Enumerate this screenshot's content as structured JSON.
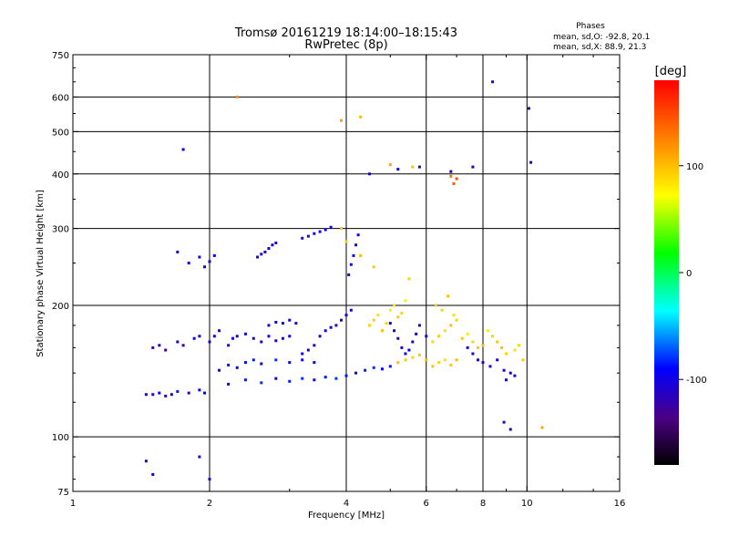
{
  "chart_data": {
    "type": "scatter",
    "title": "Tromsø 20161219 18:14:00–18:15:43",
    "subtitle": "RwPretec (8p)",
    "xlabel": "Frequency [MHz]",
    "ylabel": "Stationary phase Virtual Height [km]",
    "x_scale": "log",
    "y_scale": "log",
    "xlim": [
      1,
      16
    ],
    "ylim": [
      75,
      750
    ],
    "x_ticks": [
      1,
      2,
      4,
      6,
      8,
      10,
      16
    ],
    "y_ticks": [
      75,
      100,
      200,
      300,
      400,
      500,
      600,
      750
    ],
    "x_grid": [
      2,
      4,
      6,
      8,
      10
    ],
    "y_grid": [
      100,
      200,
      300,
      400,
      500,
      600
    ],
    "grid": true,
    "stats": {
      "title": "Phases",
      "line_o": "mean, sd,O: -92.8, 20.1",
      "line_x": "mean, sd,X: 88.9, 21.3"
    },
    "colorbar": {
      "label": "[deg]",
      "range": [
        -180,
        180
      ],
      "ticks": [
        100,
        0,
        -100
      ],
      "colormap": "rainbow"
    },
    "series": [
      {
        "mode": "O",
        "mean_phase": -92.8,
        "sd_phase": 20.1,
        "points": [
          [
            1.45,
            125,
            -100
          ],
          [
            1.5,
            125,
            -110
          ],
          [
            1.55,
            126,
            -95
          ],
          [
            1.6,
            124,
            -120
          ],
          [
            1.65,
            125,
            -100
          ],
          [
            1.7,
            127,
            -85
          ],
          [
            1.8,
            126,
            -110
          ],
          [
            1.9,
            128,
            -100
          ],
          [
            1.95,
            126,
            -90
          ],
          [
            1.5,
            160,
            -130
          ],
          [
            1.55,
            162,
            -120
          ],
          [
            1.6,
            158,
            -140
          ],
          [
            1.7,
            165,
            -110
          ],
          [
            1.75,
            162,
            -125
          ],
          [
            1.85,
            168,
            -100
          ],
          [
            1.9,
            170,
            -95
          ],
          [
            2.0,
            165,
            -110
          ],
          [
            2.05,
            170,
            -105
          ],
          [
            2.1,
            175,
            -100
          ],
          [
            2.2,
            162,
            -120
          ],
          [
            2.25,
            168,
            -100
          ],
          [
            2.3,
            170,
            -110
          ],
          [
            2.4,
            172,
            -95
          ],
          [
            2.5,
            168,
            -100
          ],
          [
            2.6,
            165,
            -105
          ],
          [
            2.7,
            170,
            -100
          ],
          [
            2.8,
            166,
            -115
          ],
          [
            2.9,
            168,
            -100
          ],
          [
            3.0,
            170,
            -95
          ],
          [
            2.1,
            142,
            -95
          ],
          [
            2.2,
            146,
            -85
          ],
          [
            2.3,
            144,
            -100
          ],
          [
            2.4,
            148,
            -90
          ],
          [
            2.5,
            150,
            -85
          ],
          [
            2.6,
            147,
            -95
          ],
          [
            2.8,
            150,
            -80
          ],
          [
            3.0,
            148,
            -95
          ],
          [
            3.2,
            150,
            -100
          ],
          [
            3.4,
            148,
            -90
          ],
          [
            2.2,
            132,
            -90
          ],
          [
            2.4,
            135,
            -85
          ],
          [
            2.6,
            133,
            -80
          ],
          [
            2.8,
            136,
            -90
          ],
          [
            3.0,
            134,
            -85
          ],
          [
            3.2,
            136,
            -80
          ],
          [
            3.4,
            135,
            -90
          ],
          [
            3.6,
            137,
            -85
          ],
          [
            3.8,
            136,
            -80
          ],
          [
            4.0,
            138,
            -85
          ],
          [
            4.2,
            140,
            -90
          ],
          [
            4.4,
            142,
            -85
          ],
          [
            4.6,
            144,
            -80
          ],
          [
            4.8,
            143,
            -90
          ],
          [
            5.0,
            145,
            -85
          ],
          [
            3.2,
            155,
            -100
          ],
          [
            3.3,
            158,
            -110
          ],
          [
            3.4,
            162,
            -120
          ],
          [
            3.5,
            170,
            -110
          ],
          [
            3.6,
            175,
            -105
          ],
          [
            3.7,
            178,
            -100
          ],
          [
            3.8,
            180,
            -115
          ],
          [
            3.9,
            185,
            -120
          ],
          [
            4.0,
            190,
            -110
          ],
          [
            4.1,
            195,
            -100
          ],
          [
            2.7,
            180,
            -100
          ],
          [
            2.8,
            183,
            -95
          ],
          [
            2.9,
            182,
            -105
          ],
          [
            3.0,
            185,
            -100
          ],
          [
            3.1,
            182,
            -110
          ],
          [
            2.55,
            258,
            -100
          ],
          [
            2.6,
            262,
            -105
          ],
          [
            2.65,
            265,
            -110
          ],
          [
            2.7,
            270,
            -100
          ],
          [
            2.75,
            275,
            -95
          ],
          [
            2.8,
            278,
            -110
          ],
          [
            3.2,
            285,
            -120
          ],
          [
            3.3,
            288,
            -115
          ],
          [
            3.4,
            292,
            -110
          ],
          [
            3.5,
            295,
            -105
          ],
          [
            3.6,
            298,
            -100
          ],
          [
            3.7,
            302,
            -105
          ],
          [
            1.7,
            265,
            -115
          ],
          [
            1.8,
            250,
            -110
          ],
          [
            1.9,
            258,
            -100
          ],
          [
            1.95,
            245,
            -105
          ],
          [
            2.0,
            252,
            -110
          ],
          [
            2.05,
            260,
            -95
          ],
          [
            4.05,
            235,
            -110
          ],
          [
            4.1,
            248,
            -105
          ],
          [
            4.15,
            260,
            -100
          ],
          [
            4.2,
            275,
            -110
          ],
          [
            4.25,
            290,
            -105
          ],
          [
            5.0,
            182,
            -100
          ],
          [
            5.1,
            175,
            -110
          ],
          [
            5.2,
            168,
            -120
          ],
          [
            5.3,
            160,
            -105
          ],
          [
            5.4,
            155,
            -100
          ],
          [
            5.5,
            158,
            -95
          ],
          [
            5.6,
            165,
            -110
          ],
          [
            5.7,
            172,
            -100
          ],
          [
            5.8,
            180,
            -105
          ],
          [
            6.0,
            170,
            -95
          ],
          [
            7.4,
            160,
            -110
          ],
          [
            7.6,
            155,
            -105
          ],
          [
            7.8,
            150,
            -100
          ],
          [
            8.0,
            148,
            -110
          ],
          [
            8.3,
            145,
            -105
          ],
          [
            8.6,
            150,
            -110
          ],
          [
            8.9,
            142,
            -100
          ],
          [
            9.0,
            135,
            -115
          ],
          [
            9.2,
            140,
            -105
          ],
          [
            9.4,
            138,
            -100
          ],
          [
            6.8,
            405,
            -100
          ],
          [
            7.6,
            415,
            -105
          ],
          [
            8.4,
            650,
            -110
          ],
          [
            10.1,
            565,
            -115
          ],
          [
            10.2,
            425,
            -110
          ],
          [
            1.45,
            88,
            -110
          ],
          [
            1.5,
            82,
            -100
          ],
          [
            1.9,
            90,
            -105
          ],
          [
            2.0,
            80,
            -110
          ],
          [
            1.75,
            455,
            -100
          ],
          [
            4.5,
            400,
            -105
          ],
          [
            5.2,
            410,
            -100
          ],
          [
            5.8,
            415,
            -110
          ],
          [
            8.9,
            108,
            -115
          ],
          [
            9.2,
            104,
            -120
          ]
        ]
      },
      {
        "mode": "X",
        "mean_phase": 88.9,
        "sd_phase": 21.3,
        "points": [
          [
            4.5,
            180,
            90
          ],
          [
            4.6,
            185,
            95
          ],
          [
            4.7,
            190,
            85
          ],
          [
            4.8,
            175,
            100
          ],
          [
            4.9,
            182,
            90
          ],
          [
            5.0,
            195,
            80
          ],
          [
            5.1,
            200,
            85
          ],
          [
            5.2,
            188,
            95
          ],
          [
            5.3,
            192,
            90
          ],
          [
            5.4,
            205,
            80
          ],
          [
            5.2,
            148,
            100
          ],
          [
            5.4,
            150,
            95
          ],
          [
            5.6,
            152,
            90
          ],
          [
            5.8,
            154,
            95
          ],
          [
            6.0,
            150,
            100
          ],
          [
            6.2,
            145,
            95
          ],
          [
            6.4,
            148,
            90
          ],
          [
            6.6,
            150,
            85
          ],
          [
            6.8,
            146,
            95
          ],
          [
            7.0,
            150,
            100
          ],
          [
            6.2,
            165,
            90
          ],
          [
            6.4,
            170,
            95
          ],
          [
            6.6,
            175,
            85
          ],
          [
            6.8,
            180,
            100
          ],
          [
            7.0,
            185,
            90
          ],
          [
            7.2,
            168,
            95
          ],
          [
            7.4,
            172,
            80
          ],
          [
            7.6,
            165,
            90
          ],
          [
            7.8,
            160,
            95
          ],
          [
            8.0,
            162,
            100
          ],
          [
            6.3,
            200,
            95
          ],
          [
            6.5,
            195,
            90
          ],
          [
            6.7,
            210,
            100
          ],
          [
            6.9,
            190,
            85
          ],
          [
            8.2,
            175,
            80
          ],
          [
            8.4,
            170,
            90
          ],
          [
            8.6,
            165,
            95
          ],
          [
            8.8,
            160,
            100
          ],
          [
            9.0,
            155,
            90
          ],
          [
            9.4,
            158,
            85
          ],
          [
            9.6,
            162,
            90
          ],
          [
            9.8,
            150,
            95
          ],
          [
            3.9,
            300,
            95
          ],
          [
            4.0,
            280,
            90
          ],
          [
            4.3,
            260,
            100
          ],
          [
            4.6,
            245,
            95
          ],
          [
            5.5,
            230,
            90
          ],
          [
            5.0,
            420,
            110
          ],
          [
            5.6,
            415,
            100
          ],
          [
            6.8,
            395,
            130
          ],
          [
            6.9,
            380,
            140
          ],
          [
            7.0,
            390,
            150
          ],
          [
            4.3,
            540,
            100
          ],
          [
            3.9,
            530,
            110
          ],
          [
            10.8,
            105,
            110
          ],
          [
            2.3,
            600,
            120
          ]
        ]
      }
    ]
  }
}
